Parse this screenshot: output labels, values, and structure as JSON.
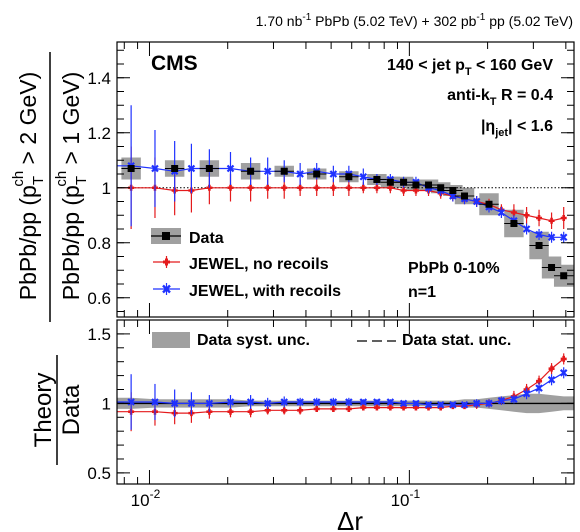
{
  "header": {
    "lumi_pbpb": "1.70 nb",
    "lumi_pbpb_exp": "-1",
    "pbpb_label": " PbPb (5.02 TeV) + 302 pb",
    "lumi_pp_exp": "-1",
    "pp_label": " pp (5.02 TeV)"
  },
  "annotations": {
    "cms": "CMS",
    "jet_pt": "140 < jet p",
    "jet_pt_sub": "T",
    "jet_pt_end": " < 160 GeV",
    "algo_pre": "anti-k",
    "algo_sub": "T",
    "algo_end": " R = 0.4",
    "eta_pre": "|η",
    "eta_sub": "jet",
    "eta_end": "| < 1.6",
    "centrality": "PbPb 0-10%",
    "moment": "n=1"
  },
  "axis_labels": {
    "y_top_outer": "PbPb/pp (p",
    "y_top_outer_sub": "T",
    "y_top_outer_sup": "ch",
    "y_top_outer_end": " > 2 GeV)",
    "y_top_inner": "PbPb/pp (p",
    "y_top_inner_sub": "T",
    "y_top_inner_sup": "ch",
    "y_top_inner_end": " > 1 GeV)",
    "y_bottom_num": "Theory",
    "y_bottom_den": "Data",
    "x": "Δr"
  },
  "legend_top": [
    {
      "label": "Data",
      "kind": "data"
    },
    {
      "label": "JEWEL, no recoils",
      "kind": "red"
    },
    {
      "label": "JEWEL, with recoils",
      "kind": "blue"
    }
  ],
  "legend_bottom": [
    {
      "label": "Data syst. unc.",
      "kind": "box"
    },
    {
      "label": "Data stat. unc.",
      "kind": "dash"
    }
  ],
  "colors": {
    "data": "#000000",
    "jewel_no_recoils": "#e41a1c",
    "jewel_with_recoils": "#1f32ff",
    "syst_band": "#a0a0a0"
  },
  "chart_data": [
    {
      "type": "scatter",
      "panel": "top",
      "x_scale": "log",
      "xlim": [
        0.0075,
        0.43
      ],
      "ylim": [
        0.53,
        1.53
      ],
      "yticks": [
        0.6,
        0.8,
        1.0,
        1.2,
        1.4
      ],
      "ytick_labels": [
        "0.6",
        "0.8",
        "1",
        "1.2",
        "1.4"
      ],
      "reference_line": 1.0,
      "x": [
        0.0085,
        0.0105,
        0.0125,
        0.0145,
        0.017,
        0.0205,
        0.0245,
        0.0285,
        0.033,
        0.038,
        0.044,
        0.051,
        0.0585,
        0.0665,
        0.075,
        0.0845,
        0.095,
        0.106,
        0.1185,
        0.132,
        0.147,
        0.163,
        0.1815,
        0.2025,
        0.226,
        0.2525,
        0.2825,
        0.3155,
        0.3525,
        0.3925
      ],
      "series": [
        {
          "name": "Data",
          "x": [
            0.0085,
            0.0125,
            0.017,
            0.0245,
            0.033,
            0.044,
            0.0585,
            0.075,
            0.0845,
            0.095,
            0.106,
            0.1185,
            0.132,
            0.147,
            0.163,
            0.2025,
            0.2525,
            0.3155,
            0.3525,
            0.3925
          ],
          "values": [
            1.07,
            1.07,
            1.07,
            1.06,
            1.06,
            1.05,
            1.04,
            1.03,
            1.02,
            1.02,
            1.01,
            1.01,
            1.0,
            0.99,
            0.97,
            0.94,
            0.87,
            0.79,
            0.71,
            0.68
          ],
          "syst": [
            0.04,
            0.03,
            0.03,
            0.03,
            0.02,
            0.02,
            0.02,
            0.02,
            0.02,
            0.02,
            0.02,
            0.02,
            0.02,
            0.02,
            0.03,
            0.04,
            0.05,
            0.05,
            0.04,
            0.04
          ]
        },
        {
          "name": "JEWEL, no recoils",
          "values": [
            1.0,
            1.0,
            0.99,
            0.99,
            1.0,
            1.0,
            1.0,
            1.0,
            1.0,
            1.0,
            1.0,
            1.0,
            1.0,
            1.0,
            1.0,
            1.0,
            0.99,
            0.99,
            0.99,
            0.98,
            0.97,
            0.96,
            0.95,
            0.94,
            0.92,
            0.91,
            0.9,
            0.89,
            0.88,
            0.89
          ],
          "err": [
            0.15,
            0.11,
            0.09,
            0.08,
            0.06,
            0.05,
            0.05,
            0.04,
            0.04,
            0.03,
            0.03,
            0.03,
            0.03,
            0.02,
            0.02,
            0.02,
            0.02,
            0.02,
            0.02,
            0.02,
            0.02,
            0.02,
            0.02,
            0.02,
            0.02,
            0.03,
            0.03,
            0.03,
            0.03,
            0.04
          ]
        },
        {
          "name": "JEWEL, with recoils",
          "values": [
            1.08,
            1.07,
            1.06,
            1.07,
            1.07,
            1.07,
            1.06,
            1.06,
            1.06,
            1.05,
            1.06,
            1.05,
            1.05,
            1.04,
            1.03,
            1.03,
            1.02,
            1.02,
            1.0,
            0.99,
            0.97,
            0.96,
            0.95,
            0.93,
            0.91,
            0.88,
            0.85,
            0.83,
            0.82,
            0.82
          ],
          "err": [
            0.22,
            0.14,
            0.11,
            0.09,
            0.07,
            0.06,
            0.05,
            0.05,
            0.04,
            0.04,
            0.03,
            0.03,
            0.03,
            0.03,
            0.02,
            0.02,
            0.02,
            0.02,
            0.02,
            0.02,
            0.02,
            0.02,
            0.02,
            0.02,
            0.02,
            0.02,
            0.02,
            0.02,
            0.02,
            0.02
          ]
        }
      ]
    },
    {
      "type": "scatter",
      "panel": "bottom",
      "x_scale": "log",
      "xlim": [
        0.0075,
        0.43
      ],
      "ylim": [
        0.42,
        1.6
      ],
      "yticks": [
        0.5,
        1.0,
        1.5
      ],
      "ytick_labels": [
        "0.5",
        "1",
        "1.5"
      ],
      "xtick_labels": [
        {
          "base": "10",
          "exp": "-2",
          "value": 0.01
        },
        {
          "base": "10",
          "exp": "-1",
          "value": 0.1
        }
      ],
      "reference_line": 1.0,
      "x": [
        0.0085,
        0.0105,
        0.0125,
        0.0145,
        0.017,
        0.0205,
        0.0245,
        0.0285,
        0.033,
        0.038,
        0.044,
        0.051,
        0.0585,
        0.0665,
        0.075,
        0.0845,
        0.095,
        0.106,
        0.1185,
        0.132,
        0.147,
        0.163,
        0.1815,
        0.2025,
        0.226,
        0.2525,
        0.2825,
        0.3155,
        0.3525,
        0.3925
      ],
      "syst_band": [
        0.04,
        0.03,
        0.03,
        0.03,
        0.03,
        0.03,
        0.02,
        0.02,
        0.02,
        0.02,
        0.02,
        0.02,
        0.02,
        0.02,
        0.02,
        0.02,
        0.02,
        0.02,
        0.02,
        0.02,
        0.02,
        0.03,
        0.03,
        0.04,
        0.05,
        0.06,
        0.07,
        0.07,
        0.06,
        0.05
      ],
      "series": [
        {
          "name": "JEWEL, no recoils",
          "values": [
            0.94,
            0.94,
            0.93,
            0.93,
            0.94,
            0.94,
            0.94,
            0.95,
            0.95,
            0.95,
            0.96,
            0.96,
            0.96,
            0.97,
            0.97,
            0.97,
            0.97,
            0.97,
            0.97,
            0.97,
            0.98,
            0.98,
            0.99,
            1.0,
            1.02,
            1.05,
            1.1,
            1.16,
            1.25,
            1.32
          ],
          "err": [
            0.14,
            0.1,
            0.08,
            0.07,
            0.05,
            0.04,
            0.04,
            0.03,
            0.03,
            0.03,
            0.02,
            0.02,
            0.02,
            0.02,
            0.02,
            0.02,
            0.02,
            0.02,
            0.02,
            0.02,
            0.02,
            0.02,
            0.03,
            0.03,
            0.03,
            0.04,
            0.04,
            0.04,
            0.04,
            0.04
          ]
        },
        {
          "name": "JEWEL, with recoils",
          "values": [
            1.01,
            1.01,
            1.0,
            1.0,
            1.0,
            1.01,
            1.01,
            1.0,
            1.01,
            1.01,
            1.01,
            1.01,
            1.01,
            1.01,
            1.01,
            1.01,
            1.0,
            1.0,
            0.99,
            0.99,
            0.99,
            0.99,
            1.0,
            1.0,
            1.02,
            1.03,
            1.07,
            1.11,
            1.17,
            1.22
          ],
          "err": [
            0.2,
            0.13,
            0.1,
            0.08,
            0.06,
            0.05,
            0.05,
            0.04,
            0.04,
            0.03,
            0.03,
            0.03,
            0.03,
            0.02,
            0.02,
            0.02,
            0.02,
            0.02,
            0.02,
            0.02,
            0.02,
            0.02,
            0.03,
            0.03,
            0.03,
            0.03,
            0.04,
            0.04,
            0.04,
            0.04
          ]
        }
      ]
    }
  ]
}
